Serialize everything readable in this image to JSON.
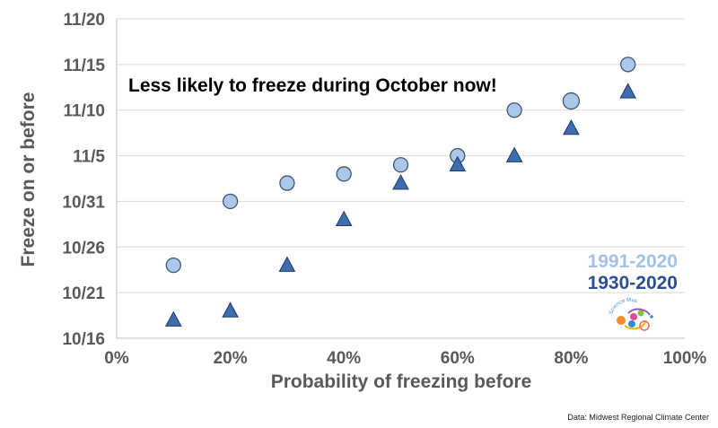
{
  "chart_data": {
    "type": "scatter",
    "title": "",
    "annotation": "Less likely to freeze during October now!",
    "xlabel": "Probability of freezing before",
    "ylabel": "Freeze on or before",
    "x_ticks": [
      "0%",
      "20%",
      "40%",
      "60%",
      "80%",
      "100%"
    ],
    "y_ticks": [
      "10/16",
      "10/21",
      "10/26",
      "10/31",
      "11/5",
      "11/10",
      "11/15",
      "11/20"
    ],
    "xlim": [
      0,
      100
    ],
    "ylim": [
      "10/16",
      "11/20"
    ],
    "grid": "horizontal",
    "legend_placement": "bottom-right",
    "x": [
      10,
      20,
      30,
      40,
      50,
      60,
      70,
      80,
      90
    ],
    "series": [
      {
        "name": "1991-2020",
        "marker": "circle",
        "color": "#a9c8ea",
        "values": [
          "10/24",
          "10/31",
          "11/2",
          "11/3",
          "11/4",
          "11/5",
          "11/10",
          "11/11",
          "11/15"
        ]
      },
      {
        "name": "1930-2020",
        "marker": "triangle",
        "color": "#3d6eb0",
        "values": [
          "10/18",
          "10/19",
          "10/24",
          "10/29",
          "11/2",
          "11/4",
          "11/5",
          "11/8",
          "11/12"
        ]
      }
    ],
    "legend_colors": {
      "1991-2020": "#a3c2e6",
      "1930-2020": "#2e4f8f"
    }
  },
  "source": "Data: Midwest Regional Climate Center",
  "logo_text": "Science Museum of Virginia"
}
